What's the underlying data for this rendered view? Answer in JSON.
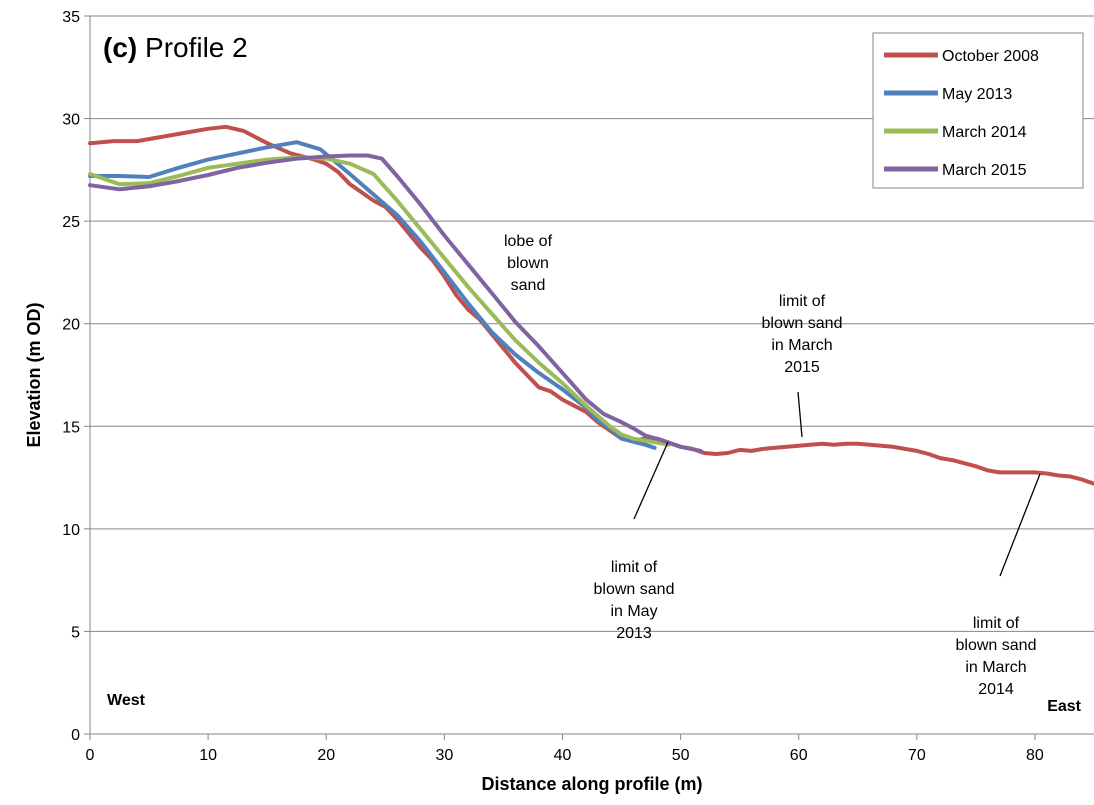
{
  "chart_data": {
    "type": "line",
    "title_bold": "(c)",
    "title_rest": "Profile 2",
    "xlabel": "Distance along profile (m)",
    "ylabel": "Elevation (m OD)",
    "xlim": [
      0,
      85
    ],
    "ylim": [
      0,
      35
    ],
    "xticks": [
      0,
      10,
      20,
      30,
      40,
      50,
      60,
      70,
      80
    ],
    "yticks": [
      0,
      5,
      10,
      15,
      20,
      25,
      30,
      35
    ],
    "grid": "horizontal",
    "legend_position": "top-right",
    "corner_labels": {
      "left": "West",
      "right": "East"
    },
    "series": [
      {
        "name": "October 2008",
        "color": "#c0504d",
        "points": [
          [
            0,
            28.8
          ],
          [
            2,
            28.9
          ],
          [
            4,
            28.9
          ],
          [
            6,
            29.1
          ],
          [
            8,
            29.3
          ],
          [
            10,
            29.5
          ],
          [
            11.5,
            29.6
          ],
          [
            13,
            29.4
          ],
          [
            15,
            28.8
          ],
          [
            17,
            28.3
          ],
          [
            19,
            28.0
          ],
          [
            20,
            27.8
          ],
          [
            21,
            27.4
          ],
          [
            22,
            26.8
          ],
          [
            23,
            26.4
          ],
          [
            24,
            26.0
          ],
          [
            25,
            25.7
          ],
          [
            26,
            25.1
          ],
          [
            27,
            24.4
          ],
          [
            28,
            23.7
          ],
          [
            29,
            23.1
          ],
          [
            30,
            22.3
          ],
          [
            31,
            21.4
          ],
          [
            32,
            20.7
          ],
          [
            33,
            20.2
          ],
          [
            34,
            19.5
          ],
          [
            35,
            18.8
          ],
          [
            36,
            18.1
          ],
          [
            37,
            17.5
          ],
          [
            38,
            16.9
          ],
          [
            39,
            16.7
          ],
          [
            40,
            16.3
          ],
          [
            41,
            16.0
          ],
          [
            42,
            15.7
          ],
          [
            43,
            15.2
          ],
          [
            44,
            14.8
          ],
          [
            45,
            14.4
          ],
          [
            46,
            14.3
          ],
          [
            47,
            14.4
          ],
          [
            48,
            14.4
          ],
          [
            49,
            14.2
          ],
          [
            50,
            14.0
          ],
          [
            51,
            13.9
          ],
          [
            52,
            13.7
          ],
          [
            53,
            13.65
          ],
          [
            54,
            13.7
          ],
          [
            55,
            13.85
          ],
          [
            56,
            13.8
          ],
          [
            57,
            13.9
          ],
          [
            58,
            13.95
          ],
          [
            59,
            14.0
          ],
          [
            60,
            14.05
          ],
          [
            61,
            14.1
          ],
          [
            62,
            14.15
          ],
          [
            63,
            14.1
          ],
          [
            64,
            14.15
          ],
          [
            65,
            14.15
          ],
          [
            66,
            14.1
          ],
          [
            67,
            14.05
          ],
          [
            68,
            14.0
          ],
          [
            69,
            13.9
          ],
          [
            70,
            13.8
          ],
          [
            71,
            13.65
          ],
          [
            72,
            13.45
          ],
          [
            73,
            13.35
          ],
          [
            74,
            13.2
          ],
          [
            75,
            13.05
          ],
          [
            76,
            12.85
          ],
          [
            77,
            12.75
          ],
          [
            78,
            12.75
          ],
          [
            79,
            12.75
          ],
          [
            80,
            12.75
          ],
          [
            81,
            12.7
          ],
          [
            82,
            12.6
          ],
          [
            83,
            12.55
          ],
          [
            84,
            12.4
          ],
          [
            85,
            12.2
          ]
        ]
      },
      {
        "name": "May 2013",
        "color": "#4f81bd",
        "points": [
          [
            0,
            27.2
          ],
          [
            2.5,
            27.2
          ],
          [
            5,
            27.15
          ],
          [
            7.5,
            27.6
          ],
          [
            10,
            28.0
          ],
          [
            12.5,
            28.3
          ],
          [
            15,
            28.6
          ],
          [
            17.5,
            28.85
          ],
          [
            19.5,
            28.5
          ],
          [
            22,
            27.3
          ],
          [
            24,
            26.3
          ],
          [
            26,
            25.3
          ],
          [
            28,
            24.0
          ],
          [
            30,
            22.5
          ],
          [
            32,
            21.0
          ],
          [
            34,
            19.6
          ],
          [
            36,
            18.5
          ],
          [
            38,
            17.6
          ],
          [
            40,
            16.8
          ],
          [
            42,
            15.9
          ],
          [
            43,
            15.3
          ],
          [
            44,
            14.9
          ],
          [
            45,
            14.4
          ],
          [
            46,
            14.25
          ],
          [
            47,
            14.1
          ],
          [
            47.8,
            13.95
          ]
        ]
      },
      {
        "name": "March 2014",
        "color": "#9bbb59",
        "points": [
          [
            0,
            27.3
          ],
          [
            2.5,
            26.8
          ],
          [
            5,
            26.85
          ],
          [
            7.5,
            27.2
          ],
          [
            10,
            27.6
          ],
          [
            12.5,
            27.8
          ],
          [
            15,
            28.0
          ],
          [
            17.5,
            28.1
          ],
          [
            20,
            28.05
          ],
          [
            22,
            27.8
          ],
          [
            24,
            27.3
          ],
          [
            26,
            26.0
          ],
          [
            28,
            24.6
          ],
          [
            30,
            23.2
          ],
          [
            32,
            21.8
          ],
          [
            34,
            20.5
          ],
          [
            36,
            19.2
          ],
          [
            38,
            18.1
          ],
          [
            40,
            17.1
          ],
          [
            42,
            16.0
          ],
          [
            43,
            15.5
          ],
          [
            44,
            15.0
          ],
          [
            45,
            14.6
          ],
          [
            46,
            14.4
          ],
          [
            47,
            14.3
          ],
          [
            48,
            14.2
          ],
          [
            49,
            14.1
          ]
        ]
      },
      {
        "name": "March 2015",
        "color": "#8064a2",
        "points": [
          [
            0,
            26.75
          ],
          [
            2.5,
            26.55
          ],
          [
            5,
            26.7
          ],
          [
            7.5,
            26.95
          ],
          [
            10,
            27.25
          ],
          [
            12.5,
            27.6
          ],
          [
            15,
            27.85
          ],
          [
            17.5,
            28.05
          ],
          [
            20,
            28.15
          ],
          [
            22,
            28.2
          ],
          [
            23.5,
            28.2
          ],
          [
            24.7,
            28.05
          ],
          [
            26,
            27.2
          ],
          [
            28,
            25.8
          ],
          [
            30,
            24.3
          ],
          [
            32,
            22.9
          ],
          [
            34,
            21.5
          ],
          [
            36,
            20.1
          ],
          [
            38,
            18.9
          ],
          [
            40,
            17.6
          ],
          [
            42,
            16.3
          ],
          [
            43.5,
            15.6
          ],
          [
            45,
            15.2
          ],
          [
            46,
            14.9
          ],
          [
            47,
            14.55
          ],
          [
            48.5,
            14.3
          ],
          [
            50,
            14.0
          ],
          [
            51.7,
            13.8
          ]
        ]
      }
    ],
    "annotations": [
      {
        "lines": [
          "lobe of",
          "blown",
          "sand"
        ]
      },
      {
        "lines": [
          "limit of",
          "blown sand",
          "in March",
          "2015"
        ]
      },
      {
        "lines": [
          "limit of",
          "blown sand",
          "in May",
          "2013"
        ]
      },
      {
        "lines": [
          "limit of",
          "blown sand",
          "in March",
          "2014"
        ]
      }
    ]
  }
}
